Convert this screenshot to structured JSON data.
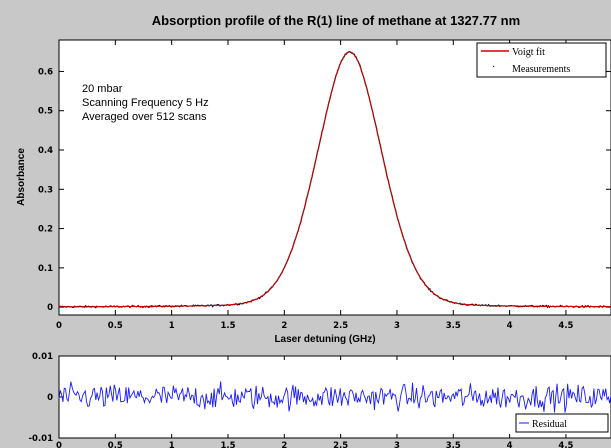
{
  "chart_data": [
    {
      "type": "line",
      "title": "Absorption profile of the R(1) line of methane at 1327.77 nm",
      "xlabel": "Laser detuning (GHz)",
      "ylabel": "Absorbance",
      "xlim": [
        0,
        4.9
      ],
      "ylim": [
        -0.02,
        0.68
      ],
      "x_ticks": [
        0,
        0.5,
        1,
        1.5,
        2,
        2.5,
        3,
        3.5,
        4,
        4.5
      ],
      "x_tick_labels": [
        "0",
        "0.5",
        "1",
        "1.5",
        "2",
        "2.5",
        "3",
        "3.5",
        "4",
        "4.5"
      ],
      "y_ticks": [
        0,
        0.1,
        0.2,
        0.3,
        0.4,
        0.5,
        0.6
      ],
      "y_tick_labels": [
        "0",
        "0.1",
        "0.2",
        "0.3",
        "0.4",
        "0.5",
        "0.6"
      ],
      "annotations": [
        "20 mbar",
        "Scanning Frequency 5 Hz",
        "Averaged over 512 scans"
      ],
      "legend_position": "top-right",
      "series": [
        {
          "name": "Voigt fit",
          "color": "#d40000",
          "model": "voigt-like peak",
          "center": 2.58,
          "peak": 0.65,
          "baseline": 0.0
        },
        {
          "name": "Measurements",
          "color": "#000000",
          "noise": 0.002
        }
      ]
    },
    {
      "type": "line",
      "xlim": [
        0,
        4.9
      ],
      "ylim": [
        -0.01,
        0.01
      ],
      "x_ticks": [
        0,
        0.5,
        1,
        1.5,
        2,
        2.5,
        3,
        3.5,
        4,
        4.5
      ],
      "x_tick_labels": [
        "0",
        "0.5",
        "1",
        "1.5",
        "2",
        "2.5",
        "3",
        "3.5",
        "4",
        "4.5"
      ],
      "y_ticks": [
        -0.01,
        0,
        0.01
      ],
      "y_tick_labels": [
        "-0.01",
        "0",
        "0.01"
      ],
      "legend_position": "bottom-right",
      "series": [
        {
          "name": "Residual",
          "color": "#1a1aff",
          "amplitude": 0.004
        }
      ]
    }
  ]
}
